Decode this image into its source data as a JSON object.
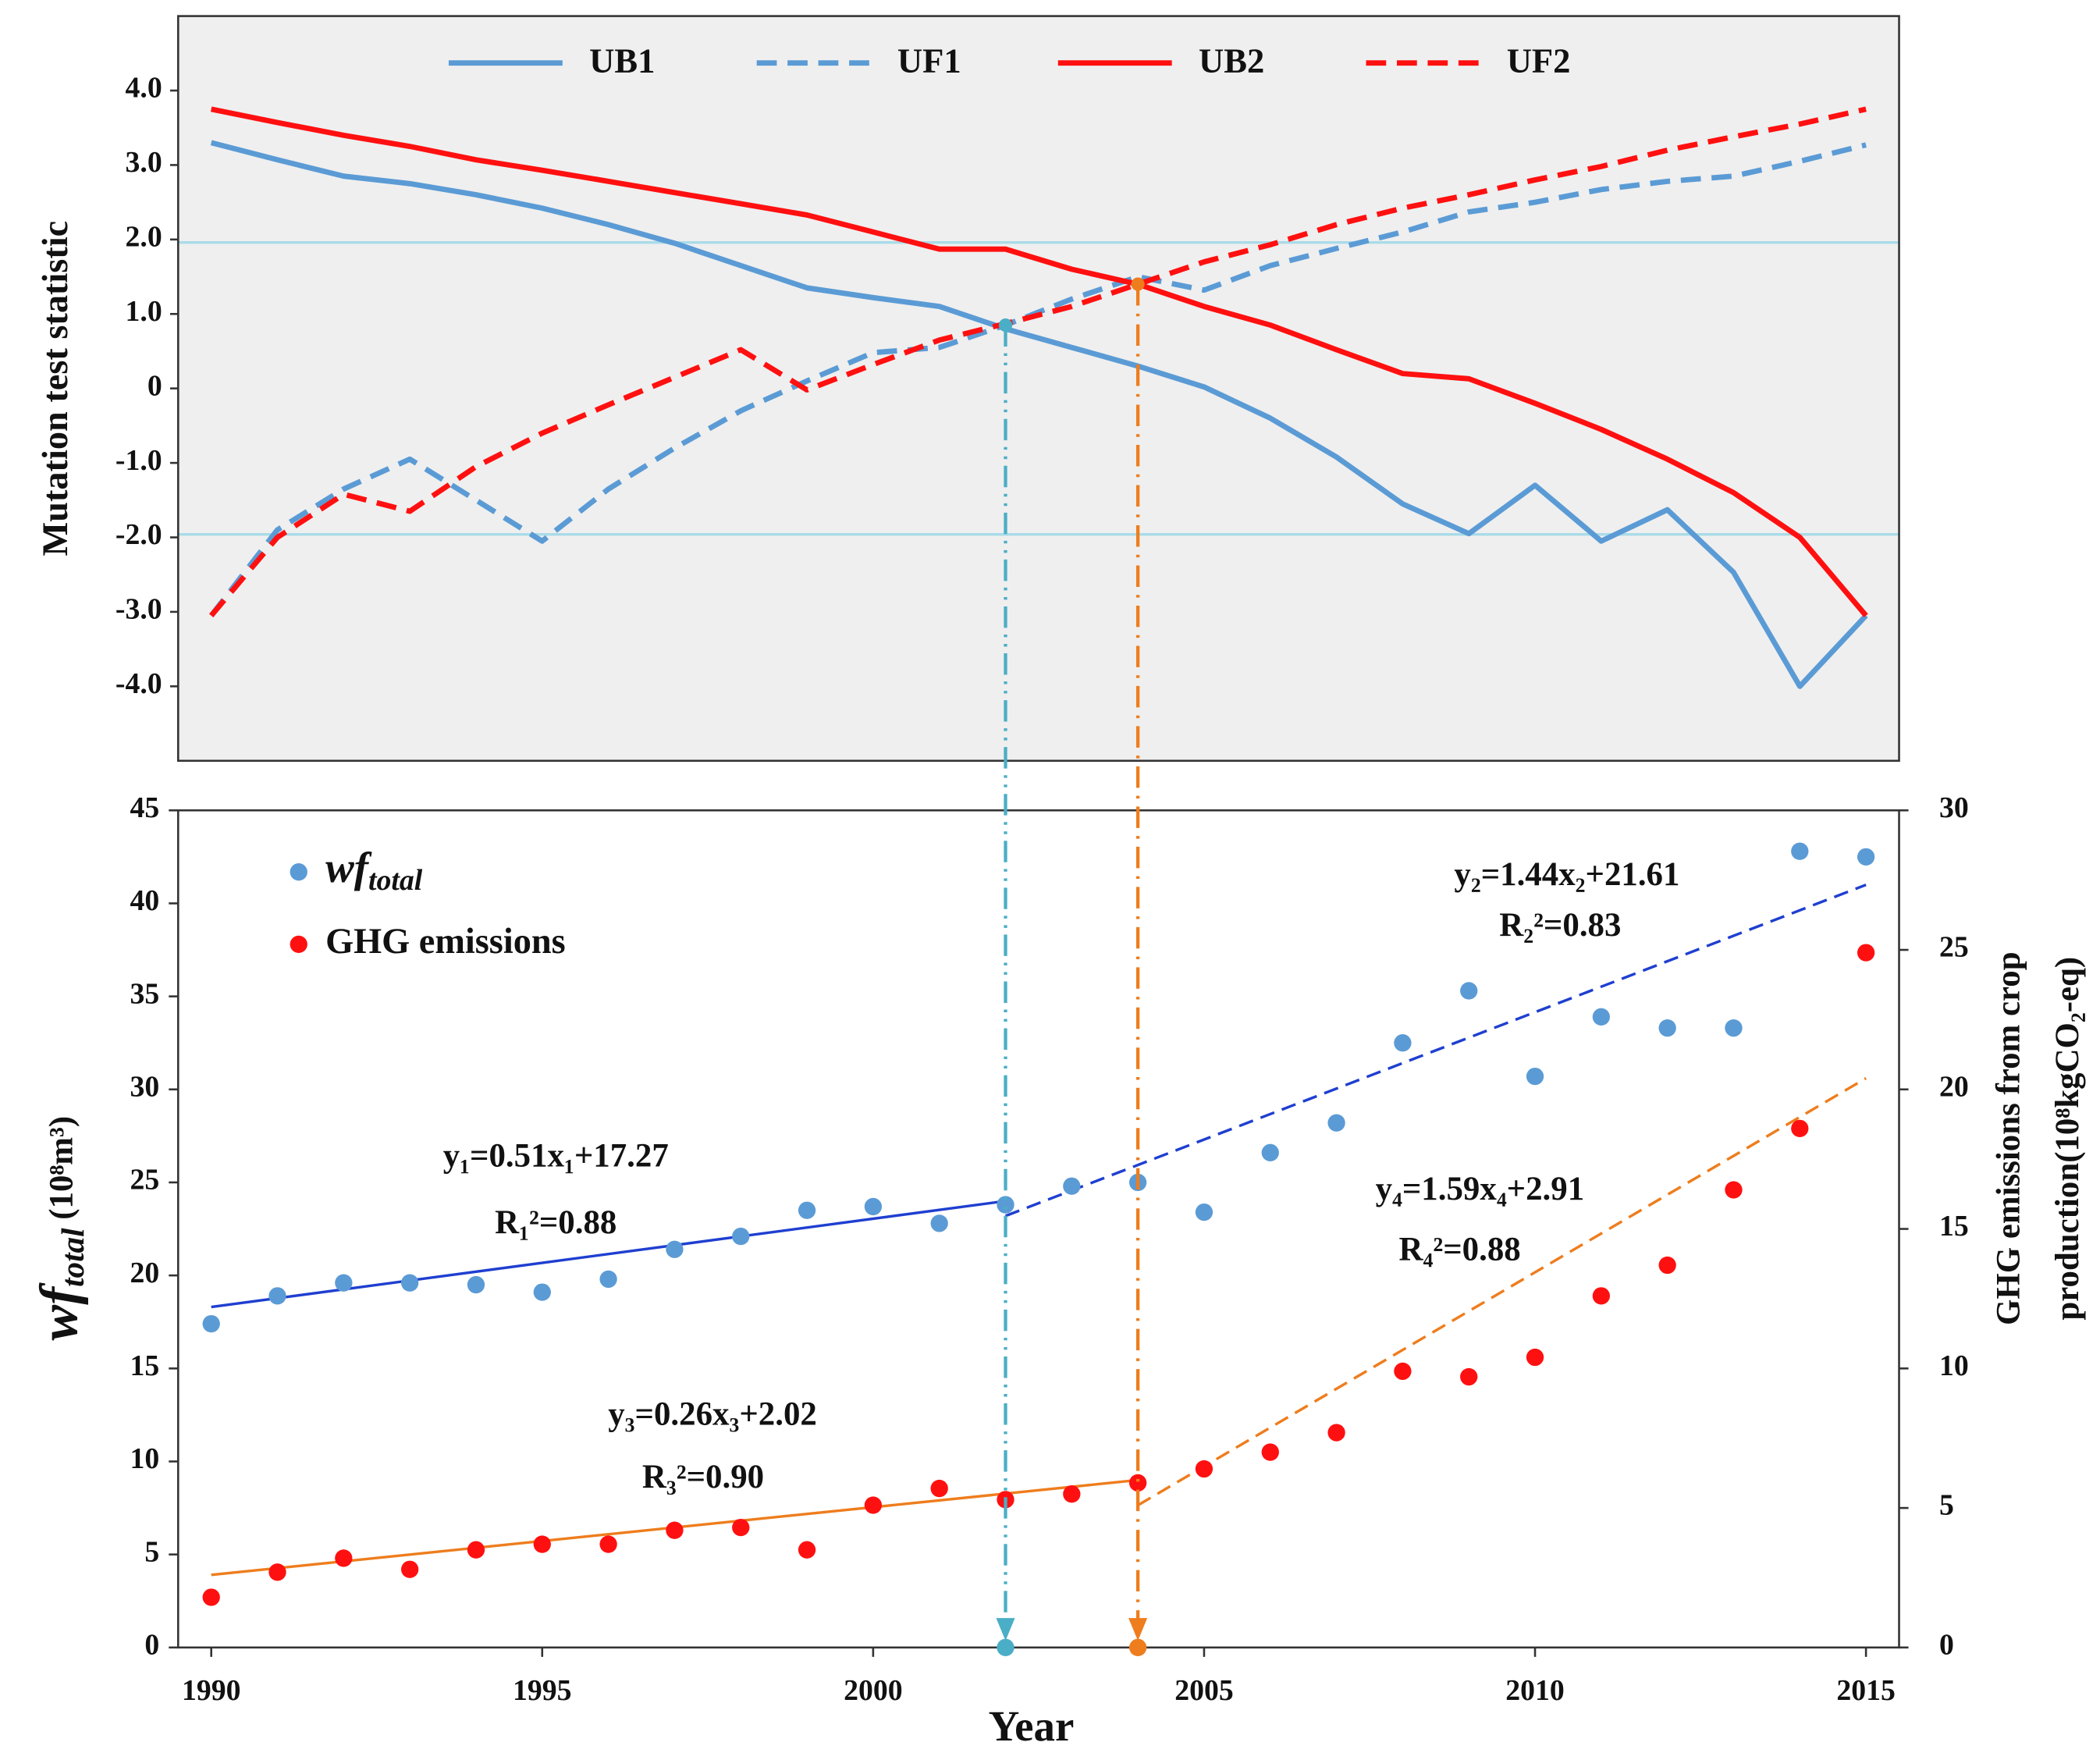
{
  "chart_data": [
    {
      "type": "line",
      "ylabel": "Mutation test statistic",
      "x": [
        1990,
        1991,
        1992,
        1993,
        1994,
        1995,
        1996,
        1997,
        1998,
        1999,
        2000,
        2001,
        2002,
        2003,
        2004,
        2005,
        2006,
        2007,
        2008,
        2009,
        2010,
        2011,
        2012,
        2013,
        2014,
        2015
      ],
      "xlim": [
        1989.5,
        2015.5
      ],
      "ylim": [
        -5,
        5
      ],
      "yticks": [
        {
          "value": 4,
          "label": "4.0"
        },
        {
          "value": 3,
          "label": "3.0"
        },
        {
          "value": 2,
          "label": "2.0"
        },
        {
          "value": 1,
          "label": "1.0"
        },
        0,
        {
          "value": -1,
          "label": "-1.0"
        },
        {
          "value": -2,
          "label": "-2.0"
        },
        {
          "value": -3,
          "label": "-3.0"
        },
        {
          "value": -4,
          "label": "-4.0"
        }
      ],
      "reference_lines": [
        1.96,
        -1.96
      ],
      "series": [
        {
          "name": "UB1",
          "color": "#5b9bd5",
          "dashed": false,
          "values": [
            3.3,
            3.07,
            2.85,
            2.75,
            2.6,
            2.42,
            2.2,
            1.95,
            1.65,
            1.35,
            1.22,
            1.1,
            0.8,
            0.55,
            0.3,
            0.02,
            -0.4,
            -0.92,
            -1.55,
            -1.95,
            -1.3,
            -2.05,
            -1.63,
            -2.47,
            -4.0,
            -3.05
          ]
        },
        {
          "name": "UF1",
          "color": "#5b9bd5",
          "dashed": true,
          "values": [
            -3.05,
            -1.9,
            -1.35,
            -0.95,
            -1.5,
            -2.05,
            -1.35,
            -0.8,
            -0.3,
            0.1,
            0.48,
            0.55,
            0.85,
            1.2,
            1.5,
            1.32,
            1.65,
            1.88,
            2.1,
            2.37,
            2.5,
            2.67,
            2.78,
            2.85,
            3.05,
            3.27
          ]
        },
        {
          "name": "UB2",
          "color": "#ff1010",
          "dashed": false,
          "values": [
            3.75,
            3.57,
            3.4,
            3.25,
            3.07,
            2.93,
            2.78,
            2.63,
            2.48,
            2.33,
            2.1,
            1.87,
            1.87,
            1.6,
            1.4,
            1.1,
            0.85,
            0.52,
            0.2,
            0.13,
            -0.2,
            -0.55,
            -0.95,
            -1.4,
            -2.0,
            -3.05
          ]
        },
        {
          "name": "UF2",
          "color": "#ff1010",
          "dashed": true,
          "values": [
            -3.05,
            -2.0,
            -1.42,
            -1.65,
            -1.05,
            -0.6,
            -0.22,
            0.15,
            0.52,
            -0.02,
            0.32,
            0.65,
            0.87,
            1.1,
            1.4,
            1.7,
            1.93,
            2.2,
            2.42,
            2.6,
            2.8,
            2.98,
            3.2,
            3.38,
            3.55,
            3.75
          ]
        }
      ],
      "change_points": [
        {
          "x": 2002,
          "y": 0.85,
          "color": "#4aaec6",
          "dash": "dash-dot-dot"
        },
        {
          "x": 2004,
          "y": 1.4,
          "color": "#ee7d1d",
          "dash": "dash-dot"
        }
      ]
    },
    {
      "type": "scatter",
      "xlabel": "Year",
      "ylabel": {
        "main": "wf",
        "sub": "total",
        "unit": " (10⁸m³)"
      },
      "y2label": [
        "GHG emissions from crop",
        "production(10⁸kgCO₂-eq)"
      ],
      "x": [
        1990,
        1991,
        1992,
        1993,
        1994,
        1995,
        1996,
        1997,
        1998,
        1999,
        2000,
        2001,
        2002,
        2003,
        2004,
        2005,
        2006,
        2007,
        2008,
        2009,
        2010,
        2011,
        2012,
        2013,
        2014,
        2015
      ],
      "xlim": [
        1989.5,
        2015.5
      ],
      "xticks": [
        1990,
        1995,
        2000,
        2005,
        2010,
        2015
      ],
      "ylim": [
        0,
        45
      ],
      "yticks": [
        0,
        5,
        10,
        15,
        20,
        25,
        30,
        35,
        40,
        45
      ],
      "y2lim": [
        0,
        30
      ],
      "y2ticks": [
        0,
        5,
        10,
        15,
        20,
        25,
        30
      ],
      "series": [
        {
          "name": "wf",
          "name_sub": "total",
          "color": "#5b9bd5",
          "values": [
            17.4,
            18.9,
            19.6,
            19.6,
            19.5,
            19.1,
            19.8,
            21.4,
            22.1,
            23.5,
            23.7,
            22.8,
            23.8,
            24.8,
            25.0,
            23.4,
            26.6,
            28.2,
            32.5,
            35.3,
            30.7,
            33.9,
            33.3,
            33.3,
            42.8,
            42.5
          ]
        },
        {
          "name": "GHG emissions",
          "color": "#ff1010",
          "axis": "y2",
          "values": [
            1.8,
            2.7,
            3.2,
            2.8,
            3.5,
            3.7,
            3.7,
            4.2,
            4.3,
            3.5,
            5.1,
            5.7,
            5.3,
            5.5,
            5.9,
            6.4,
            7.0,
            7.7,
            9.9,
            9.7,
            10.4,
            12.6,
            13.7,
            16.4,
            18.6,
            24.9
          ]
        }
      ],
      "fits": [
        {
          "color": "#1f3fd0",
          "dashed": false,
          "x": [
            1990,
            2002
          ],
          "values": [
            18.3,
            24.0
          ]
        },
        {
          "color": "#1f3fd0",
          "dashed": true,
          "x": [
            2002,
            2015
          ],
          "values": [
            23.2,
            41.0
          ]
        },
        {
          "color": "#ee7d1d",
          "dashed": false,
          "axis": "y2",
          "x": [
            1990,
            2004
          ],
          "values": [
            2.6,
            6.0
          ]
        },
        {
          "color": "#ee7d1d",
          "dashed": true,
          "axis": "y2",
          "x": [
            2004,
            2015
          ],
          "values": [
            5.1,
            20.4
          ]
        }
      ],
      "annotations": [
        {
          "text": "y₁=0.51x₁+17.27",
          "color": "#1f3fd0"
        },
        {
          "text": "R₁²=0.88",
          "color": "#1f3fd0"
        },
        {
          "text": "y₂=1.44x₂+21.61",
          "color": "#1f3fd0"
        },
        {
          "text": "R₂²=0.83",
          "color": "#1f3fd0"
        },
        {
          "text": "y₃=0.26x₃+2.02",
          "color": "#ee7d1d"
        },
        {
          "text": "R₃²=0.90",
          "color": "#ee7d1d"
        },
        {
          "text": "y₄=1.59x₄+2.91",
          "color": "#ee7d1d"
        },
        {
          "text": "R₄²=0.88",
          "color": "#ee7d1d"
        }
      ]
    }
  ]
}
